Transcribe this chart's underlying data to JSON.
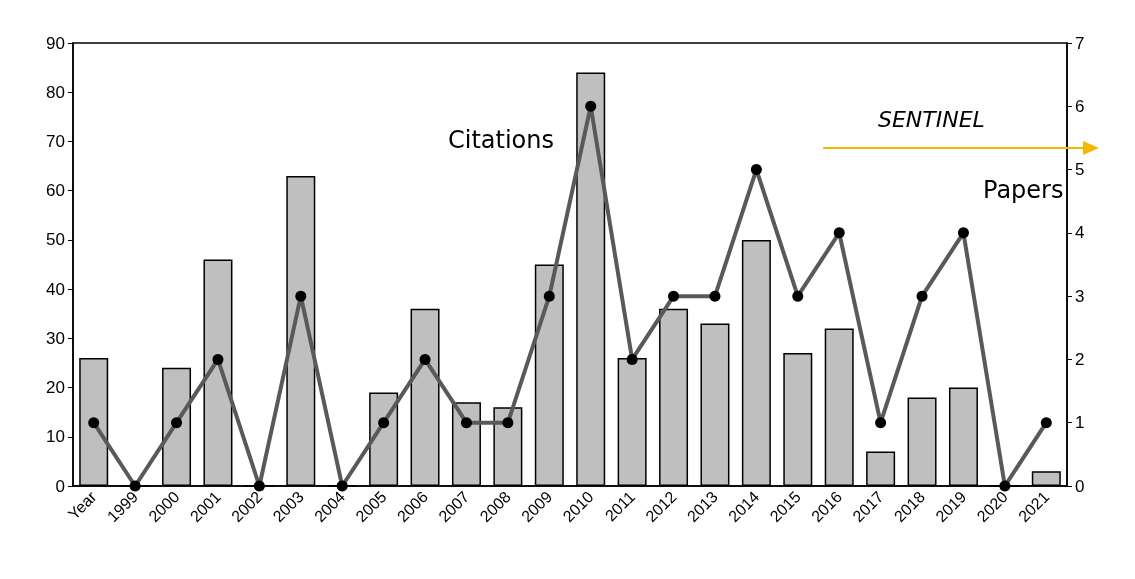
{
  "chart_data": {
    "type": "bar",
    "categories": [
      "Year",
      "1999",
      "2000",
      "2001",
      "2002",
      "2003",
      "2004",
      "2005",
      "2006",
      "2007",
      "2008",
      "2009",
      "2010",
      "2011",
      "2012",
      "2013",
      "2014",
      "2015",
      "2016",
      "2017",
      "2018",
      "2019",
      "2020",
      "2021"
    ],
    "series": [
      {
        "name": "Citations",
        "color": "#bfbfbf",
        "values": [
          26,
          0,
          24,
          46,
          0,
          63,
          0,
          19,
          36,
          17,
          16,
          45,
          84,
          26,
          36,
          33,
          50,
          27,
          32,
          7,
          18,
          20,
          0,
          3
        ]
      },
      {
        "name": "Papers",
        "type": "line",
        "axis": "y2",
        "color": "#595959",
        "values": [
          1,
          0,
          1,
          2,
          0,
          3,
          0,
          1,
          2,
          1,
          1,
          3,
          6,
          2,
          3,
          3,
          5,
          3,
          4,
          1,
          3,
          4,
          0,
          1
        ]
      }
    ],
    "ylim": [
      0,
      90
    ],
    "yticks": [
      0,
      10,
      20,
      30,
      40,
      50,
      60,
      70,
      80,
      90
    ],
    "y2lim": [
      0,
      7
    ],
    "y2ticks": [
      0,
      1,
      2,
      3,
      4,
      5,
      6,
      7
    ],
    "annotations": [
      "SENTINEL"
    ],
    "grid": false,
    "legend": false,
    "marker": "circle",
    "line_style": "solid"
  }
}
